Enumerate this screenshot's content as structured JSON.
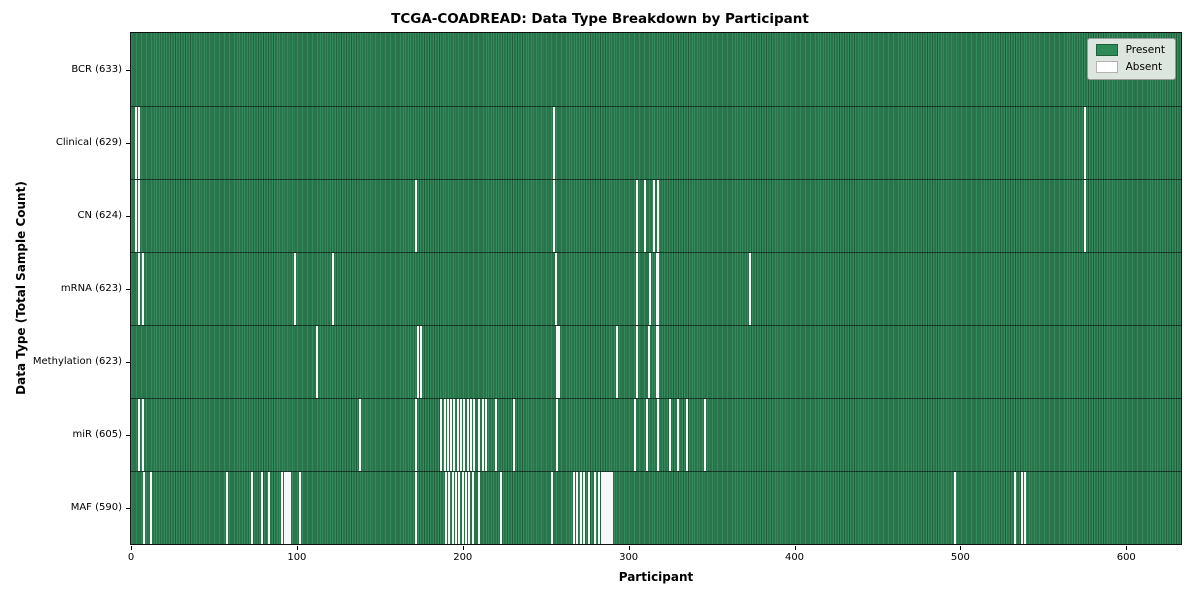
{
  "figure": {
    "title": "TCGA-COADREAD: Data Type Breakdown by Participant",
    "xlabel": "Participant",
    "ylabel": "Data Type (Total Sample Count)"
  },
  "legend": {
    "items": [
      {
        "name": "present",
        "label": "Present",
        "color": "#2e8b57"
      },
      {
        "name": "absent",
        "label": "Absent",
        "color": "#ffffff"
      }
    ]
  },
  "chart_data": {
    "type": "heatmap",
    "title": "TCGA-COADREAD: Data Type Breakdown by Participant",
    "xlabel": "Participant",
    "ylabel": "Data Type (Total Sample Count)",
    "x_ticks": [
      0,
      100,
      200,
      300,
      400,
      500,
      600
    ],
    "x_range": [
      0,
      633
    ],
    "n_participants": 633,
    "legend_position": "upper right",
    "grid": false,
    "colors": {
      "present": "#2e8b57",
      "present_stripe_dark": "#1f5f3b",
      "absent": "#f7f7f7",
      "row_divider": "rgba(0,0,0,0.55)"
    },
    "rows": [
      {
        "label": "BCR (633)",
        "data_type": "BCR",
        "count": 633,
        "absent_participants": []
      },
      {
        "label": "Clinical (629)",
        "data_type": "Clinical",
        "count": 629,
        "absent_participants": [
          3,
          5,
          255,
          575
        ]
      },
      {
        "label": "CN (624)",
        "data_type": "CN",
        "count": 624,
        "absent_participants": [
          3,
          5,
          172,
          255,
          305,
          310,
          315,
          318,
          575
        ]
      },
      {
        "label": "mRNA (623)",
        "data_type": "mRNA",
        "count": 623,
        "absent_participants": [
          5,
          7,
          99,
          122,
          256,
          305,
          313,
          317,
          318,
          373
        ]
      },
      {
        "label": "Methylation (623)",
        "data_type": "Methylation",
        "count": 623,
        "absent_participants": [
          112,
          173,
          175,
          257,
          258,
          293,
          305,
          312,
          317,
          318
        ]
      },
      {
        "label": "miR (605)",
        "data_type": "miR",
        "count": 605,
        "absent_participants": [
          5,
          7,
          138,
          172,
          187,
          189,
          191,
          193,
          195,
          197,
          199,
          201,
          203,
          205,
          207,
          210,
          212,
          214,
          220,
          231,
          257,
          304,
          311,
          318,
          325,
          330,
          335,
          346
        ]
      },
      {
        "label": "MAF (590)",
        "data_type": "MAF",
        "count": 590,
        "absent_participants": [
          8,
          12,
          58,
          73,
          79,
          83,
          91,
          93,
          94,
          95,
          96,
          102,
          172,
          190,
          192,
          194,
          196,
          198,
          200,
          202,
          204,
          206,
          210,
          223,
          254,
          267,
          269,
          271,
          273,
          276,
          280,
          282,
          284,
          285,
          286,
          287,
          288,
          289,
          290,
          497,
          533,
          537,
          539
        ]
      }
    ]
  }
}
